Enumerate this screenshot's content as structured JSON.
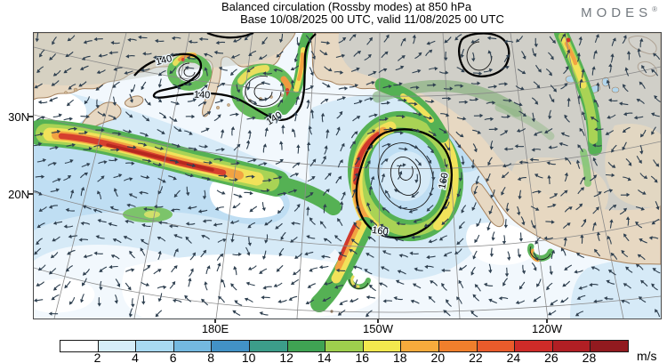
{
  "header": {
    "title_line1": "Balanced circulation (Rossby modes) at 850 hPa",
    "title_line2": "Base 10/08/2025 00 UTC, valid 11/08/2025 00 UTC"
  },
  "logo": {
    "text": "MODES",
    "mark": "®"
  },
  "map": {
    "lat_labels": [
      "30N",
      "20N"
    ],
    "lon_labels": [
      "180E",
      "150W",
      "120W"
    ],
    "contour_140": "140",
    "contour_160": "160"
  },
  "colorbar": {
    "unit": "m/s",
    "tick_labels": [
      "2",
      "4",
      "6",
      "8",
      "10",
      "12",
      "14",
      "16",
      "18",
      "20",
      "22",
      "24",
      "26",
      "28"
    ],
    "colors": [
      "#ffffff",
      "#d6edf9",
      "#a8d9f1",
      "#74b9e0",
      "#4292c6",
      "#3c9d8a",
      "#3fa353",
      "#9ecf4d",
      "#f3e84e",
      "#f6ab3c",
      "#f07f2c",
      "#ea5b2b",
      "#ce2b28",
      "#b11f24",
      "#921a1f"
    ]
  },
  "chart_data": {
    "type": "heatmap",
    "title": "Balanced circulation (Rossby modes) at 850 hPa",
    "subtitle": "Base 10/08/2025 00 UTC, valid 11/08/2025 00 UTC",
    "variable": "balanced wind speed with wind vectors and streamfunction contours",
    "unit": "m/s",
    "colorbar_levels": [
      2,
      4,
      6,
      8,
      10,
      12,
      14,
      16,
      18,
      20,
      22,
      24,
      26,
      28
    ],
    "colorbar_colors": [
      "#ffffff",
      "#d6edf9",
      "#a8d9f1",
      "#74b9e0",
      "#4292c6",
      "#3c9d8a",
      "#3fa353",
      "#9ecf4d",
      "#f3e84e",
      "#f6ab3c",
      "#f07f2c",
      "#ea5b2b",
      "#ce2b28",
      "#b11f24",
      "#921a1f"
    ],
    "x_ticks": [
      "180E",
      "150W",
      "120W"
    ],
    "y_ticks": [
      "30N",
      "20N"
    ],
    "contour_labels": [
      "140",
      "140",
      "140",
      "160",
      "160"
    ],
    "features": [
      {
        "name": "zonal jet streak",
        "location": "west of 180E near 28N",
        "peak_speed_mps": 28
      },
      {
        "name": "closed 160 contour with high-speed ring",
        "location": "near 155W, 20N"
      },
      {
        "name": "cyclonic eddies inside 140 contour",
        "location": "northwest Pacific"
      },
      {
        "name": "meridional high-speed band",
        "location": "over central North America near 120W"
      }
    ],
    "legend_position": "bottom",
    "grid": true
  }
}
